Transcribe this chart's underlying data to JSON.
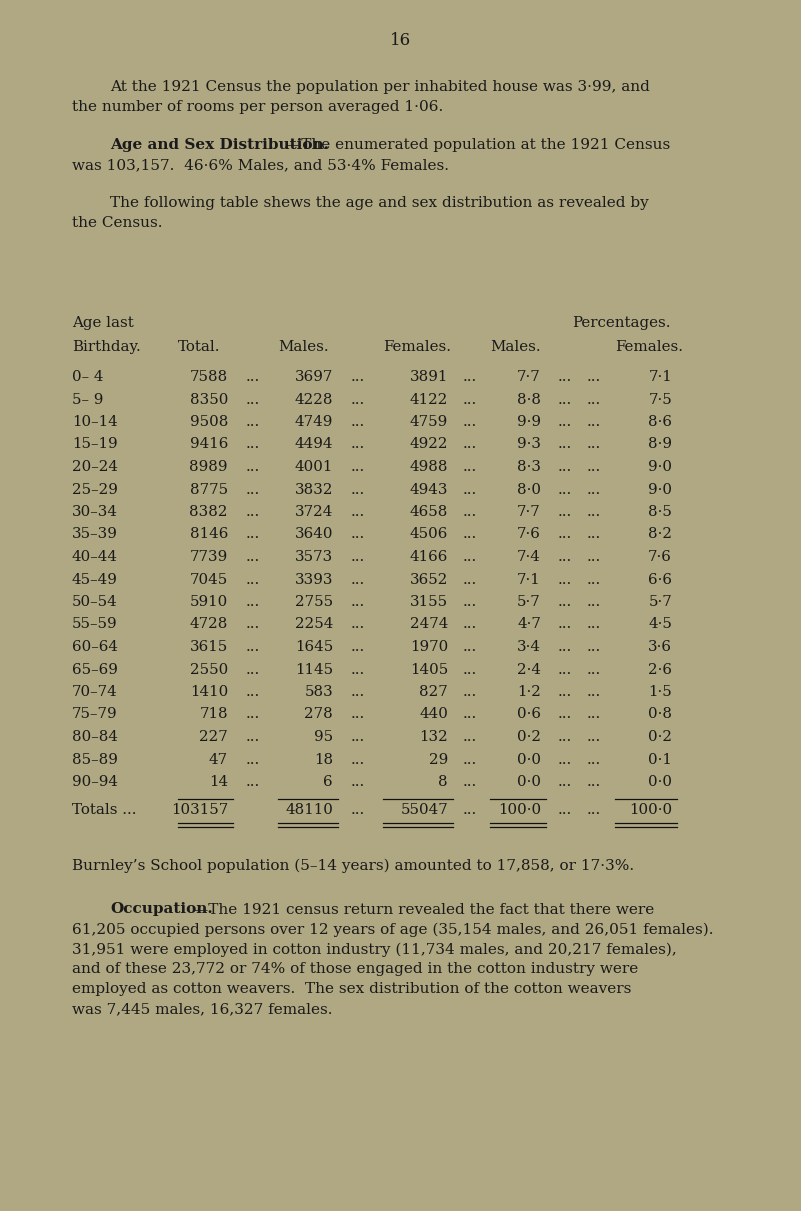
{
  "bg_color": "#b0a882",
  "page_number": "16",
  "page_number_fontsize": 12,
  "body_fontsize": 11.0,
  "bold_fontsize": 11.0,
  "table_fontsize": 10.8,
  "font_family": "DejaVu Serif",
  "para1_line1": "At the 1921 Census the population per inhabited house was 3·99, and",
  "para1_line2": "the number of rooms per person averaged 1·06.",
  "para2_bold": "Age and Sex Distribution.",
  "para2_rest": "—The enumerated population at the 1921 Census",
  "para2_line2": "was 103,157.  46·6% Males, and 53·4% Females.",
  "para3_line1": "The following table shews the age and sex distribution as revealed by",
  "para3_line2": "the Census.",
  "table_header1_left": "Age last",
  "table_header1_right": "Percentages.",
  "col_headers": [
    "Birthday.",
    "Total.",
    "Males.",
    "Females.",
    "Males.",
    "Females."
  ],
  "table_rows": [
    [
      "0– 4",
      "7588",
      "3697",
      "3891",
      "7·7",
      "7·1"
    ],
    [
      "5– 9",
      "8350",
      "4228",
      "4122",
      "8·8",
      "7·5"
    ],
    [
      "10–14",
      "9508",
      "4749",
      "4759",
      "9·9",
      "8·6"
    ],
    [
      "15–19",
      "9416",
      "4494",
      "4922",
      "9·3",
      "8·9"
    ],
    [
      "20–24",
      "8989",
      "4001",
      "4988",
      "8·3",
      "9·0"
    ],
    [
      "25–29",
      "8775",
      "3832",
      "4943",
      "8·0",
      "9·0"
    ],
    [
      "30–34",
      "8382",
      "3724",
      "4658",
      "7·7",
      "8·5"
    ],
    [
      "35–39",
      "8146",
      "3640",
      "4506",
      "7·6",
      "8·2"
    ],
    [
      "40–44",
      "7739",
      "3573",
      "4166",
      "7·4",
      "7·6"
    ],
    [
      "45–49",
      "7045",
      "3393",
      "3652",
      "7·1",
      "6·6"
    ],
    [
      "50–54",
      "5910",
      "2755",
      "3155",
      "5·7",
      "5·7"
    ],
    [
      "55–59",
      "4728",
      "2254",
      "2474",
      "4·7",
      "4·5"
    ],
    [
      "60–64",
      "3615",
      "1645",
      "1970",
      "3·4",
      "3·6"
    ],
    [
      "65–69",
      "2550",
      "1145",
      "1405",
      "2·4",
      "2·6"
    ],
    [
      "70–74",
      "1410",
      "583",
      "827",
      "1·2",
      "1·5"
    ],
    [
      "75–79",
      "718",
      "278",
      "440",
      "0·6",
      "0·8"
    ],
    [
      "80–84",
      "227",
      "95",
      "132",
      "0·2",
      "0·2"
    ],
    [
      "85–89",
      "47",
      "18",
      "29",
      "0·0",
      "0·1"
    ],
    [
      "90–94",
      "14",
      "6",
      "8",
      "0·0",
      "0·0"
    ]
  ],
  "totals_label": "Totals ...",
  "totals_values": [
    "103157",
    "48110",
    "55047",
    "100·0",
    "100·0"
  ],
  "para4": "Burnley’s School population (5–14 years) amounted to 17,858, or 17·3%.",
  "para5_bold": "Occupation.",
  "para5_rest": "—The 1921 census return revealed the fact that there were",
  "para5_lines": [
    "61,205 occupied persons over 12 years of age (35,154 males, and 26,051 females).",
    "31,951 were employed in cotton industry (11,734 males, and 20,217 females),",
    "and of these 23,772 or 74% of those engaged in the cotton industry were",
    "employed as cotton weavers.  The sex distribution of the cotton weavers",
    "was 7,445 males, 16,327 females."
  ]
}
